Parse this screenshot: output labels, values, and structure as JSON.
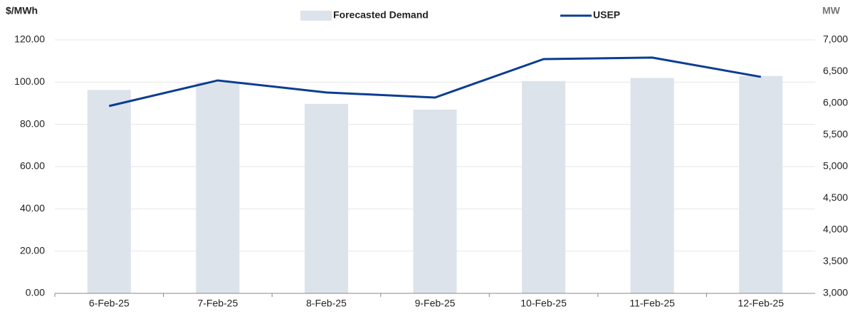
{
  "chart_data": {
    "type": "bar",
    "y_label": "$/MWh",
    "y2_label": "MW",
    "categories": [
      "6-Feb-25",
      "7-Feb-25",
      "8-Feb-25",
      "9-Feb-25",
      "10-Feb-25",
      "11-Feb-25",
      "12-Feb-25"
    ],
    "series": [
      {
        "name": "Forecasted Demand",
        "type": "bar",
        "axis": "y2",
        "color": "#dce3ea",
        "values": [
          6210,
          6330,
          5990,
          5900,
          6350,
          6400,
          6430
        ]
      },
      {
        "name": "USEP",
        "type": "line",
        "axis": "y",
        "color": "#0b3d91",
        "values": [
          88.7,
          100.8,
          95.1,
          92.7,
          110.9,
          111.6,
          102.5
        ]
      }
    ],
    "ylim": [
      0,
      120
    ],
    "yticks": [
      {
        "value": 0,
        "label": "0.00"
      },
      {
        "value": 20,
        "label": "20.00"
      },
      {
        "value": 40,
        "label": "40.00"
      },
      {
        "value": 60,
        "label": "60.00"
      },
      {
        "value": 80,
        "label": "80.00"
      },
      {
        "value": 100,
        "label": "100.00"
      },
      {
        "value": 120,
        "label": "120.00"
      }
    ],
    "y2lim": [
      3000,
      7000
    ],
    "y2ticks": [
      {
        "value": 3000,
        "label": "3,000"
      },
      {
        "value": 3500,
        "label": "3,500"
      },
      {
        "value": 4000,
        "label": "4,000"
      },
      {
        "value": 4500,
        "label": "4,500"
      },
      {
        "value": 5000,
        "label": "5,000"
      },
      {
        "value": 5500,
        "label": "5,500"
      },
      {
        "value": 6000,
        "label": "6,000"
      },
      {
        "value": 6500,
        "label": "6,500"
      },
      {
        "value": 7000,
        "label": "7,000"
      }
    ],
    "grid": true,
    "legend": "top"
  }
}
